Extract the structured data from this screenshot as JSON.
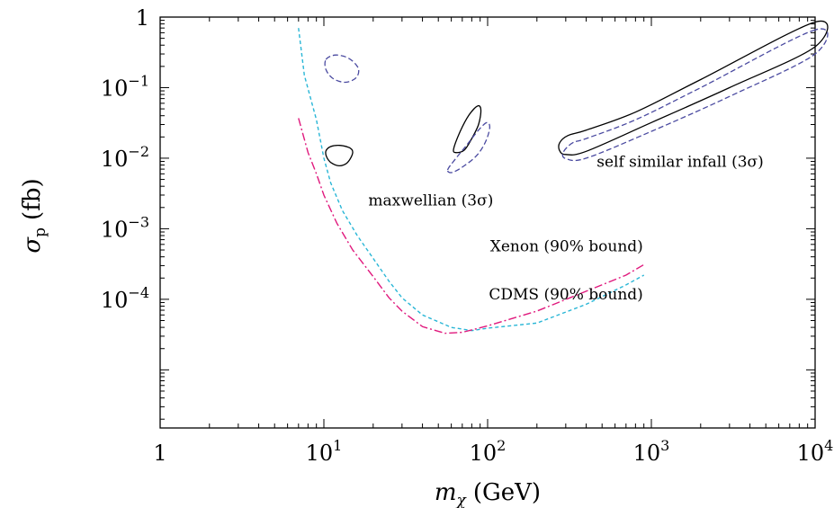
{
  "chart_data": {
    "type": "line",
    "xscale": "log",
    "yscale": "log",
    "xlim": [
      1,
      10000
    ],
    "ylim": [
      1.5e-06,
      1
    ],
    "xlabel": {
      "base": "m",
      "sub": "χ",
      "unit": "(GeV)"
    },
    "ylabel": {
      "base": "σ",
      "sub": "p",
      "unit": "(fb)"
    },
    "x_ticks": [
      {
        "value": 1,
        "mant": "1",
        "exp": ""
      },
      {
        "value": 10,
        "mant": "10",
        "exp": "1"
      },
      {
        "value": 100,
        "mant": "10",
        "exp": "2"
      },
      {
        "value": 1000,
        "mant": "10",
        "exp": "3"
      },
      {
        "value": 10000,
        "mant": "10",
        "exp": "4"
      }
    ],
    "y_ticks": [
      {
        "value": 1,
        "mant": "1",
        "exp": ""
      },
      {
        "value": 0.1,
        "mant": "10",
        "exp": "−1"
      },
      {
        "value": 0.01,
        "mant": "10",
        "exp": "−2"
      },
      {
        "value": 0.001,
        "mant": "10",
        "exp": "−3"
      },
      {
        "value": 0.0001,
        "mant": "10",
        "exp": "−4"
      }
    ],
    "series": [
      {
        "name": "CDMS (90% bound)",
        "color": "#29b6d6",
        "dash": "4,3",
        "points": [
          [
            7,
            0.7
          ],
          [
            7.6,
            0.15
          ],
          [
            8.3,
            0.07
          ],
          [
            9,
            0.035
          ],
          [
            10,
            0.01
          ],
          [
            11,
            0.0045
          ],
          [
            13,
            0.0018
          ],
          [
            16,
            0.0008
          ],
          [
            20,
            0.00038
          ],
          [
            25,
            0.00018
          ],
          [
            30,
            0.000105
          ],
          [
            40,
            6e-05
          ],
          [
            60,
            4e-05
          ],
          [
            80,
            3.6e-05
          ],
          [
            100,
            3.9e-05
          ],
          [
            200,
            4.6e-05
          ],
          [
            400,
            8.5e-05
          ],
          [
            700,
            0.00016
          ],
          [
            900,
            0.00022
          ]
        ]
      },
      {
        "name": "Xenon (90% bound)",
        "color": "#e0197d",
        "dash": "9,3,2,3",
        "points": [
          [
            7,
            0.037
          ],
          [
            8,
            0.012
          ],
          [
            9,
            0.006
          ],
          [
            10,
            0.003
          ],
          [
            12,
            0.0012
          ],
          [
            15,
            0.0005
          ],
          [
            20,
            0.00021
          ],
          [
            25,
            0.000105
          ],
          [
            30,
            6.8e-05
          ],
          [
            40,
            4.1e-05
          ],
          [
            55,
            3.3e-05
          ],
          [
            70,
            3.4e-05
          ],
          [
            100,
            4.2e-05
          ],
          [
            200,
            6.8e-05
          ],
          [
            400,
            0.00013
          ],
          [
            700,
            0.00022
          ],
          [
            900,
            0.00031
          ]
        ]
      }
    ],
    "regions": [
      {
        "group": "maxwellian (3σ)",
        "style": "solid",
        "color": "#000000",
        "points": [
          [
            10.3,
            0.0127
          ],
          [
            11.0,
            0.0146
          ],
          [
            12.5,
            0.0152
          ],
          [
            14.3,
            0.0141
          ],
          [
            15.0,
            0.0124
          ],
          [
            14.6,
            0.0101
          ],
          [
            13.7,
            0.0084
          ],
          [
            12.4,
            0.0078
          ],
          [
            11.1,
            0.0086
          ],
          [
            10.4,
            0.0104
          ]
        ]
      },
      {
        "group": "maxwellian (3σ)",
        "style": "dashed",
        "color": "#4a4aa0",
        "points": [
          [
            10.3,
            0.25
          ],
          [
            11.8,
            0.29
          ],
          [
            14.2,
            0.26
          ],
          [
            16.2,
            0.19
          ],
          [
            15.8,
            0.14
          ],
          [
            13.6,
            0.119
          ],
          [
            11.4,
            0.134
          ],
          [
            10.3,
            0.18
          ]
        ]
      },
      {
        "group": "maxwellian (3σ)",
        "style": "solid",
        "color": "#000000",
        "points": [
          [
            62,
            0.0135
          ],
          [
            68,
            0.024
          ],
          [
            77,
            0.041
          ],
          [
            87,
            0.055
          ],
          [
            91,
            0.048
          ],
          [
            88,
            0.03
          ],
          [
            80,
            0.019
          ],
          [
            72,
            0.013
          ],
          [
            64,
            0.012
          ]
        ]
      },
      {
        "group": "maxwellian (3σ)",
        "style": "dashed",
        "color": "#4a4aa0",
        "points": [
          [
            57,
            0.0068
          ],
          [
            63,
            0.0095
          ],
          [
            74,
            0.015
          ],
          [
            88,
            0.025
          ],
          [
            99,
            0.032
          ],
          [
            103,
            0.027
          ],
          [
            97,
            0.017
          ],
          [
            86,
            0.011
          ],
          [
            72,
            0.0078
          ],
          [
            61,
            0.0063
          ]
        ]
      },
      {
        "group": "self similar infall (3σ)",
        "style": "solid",
        "color": "#000000",
        "points": [
          [
            10000,
            0.85
          ],
          [
            2000,
            0.13
          ],
          [
            800,
            0.045
          ],
          [
            400,
            0.025
          ],
          [
            310,
            0.021
          ],
          [
            275,
            0.0165
          ],
          [
            275,
            0.0128
          ],
          [
            300,
            0.0113
          ],
          [
            400,
            0.0125
          ],
          [
            1000,
            0.032
          ],
          [
            3000,
            0.1
          ],
          [
            10000,
            0.38
          ]
        ]
      },
      {
        "group": "self similar infall (3σ)",
        "style": "dashed",
        "color": "#4a4aa0",
        "points": [
          [
            10000,
            0.66
          ],
          [
            2000,
            0.1
          ],
          [
            800,
            0.035
          ],
          [
            400,
            0.019
          ],
          [
            330,
            0.0165
          ],
          [
            290,
            0.0122
          ],
          [
            300,
            0.0099
          ],
          [
            400,
            0.01
          ],
          [
            1000,
            0.024
          ],
          [
            3000,
            0.075
          ],
          [
            10000,
            0.3
          ]
        ]
      }
    ],
    "annotations": [
      {
        "text": "self similar infall (3σ)",
        "x": 1500,
        "y": 0.0076,
        "anchor": "middle"
      },
      {
        "text": "maxwellian (3σ)",
        "x": 45,
        "y": 0.00215,
        "anchor": "middle"
      },
      {
        "text": "Xenon (90% bound)",
        "x": 890,
        "y": 0.00048,
        "anchor": "end"
      },
      {
        "text": "CDMS (90% bound)",
        "x": 890,
        "y": 0.0001,
        "anchor": "end"
      }
    ]
  }
}
